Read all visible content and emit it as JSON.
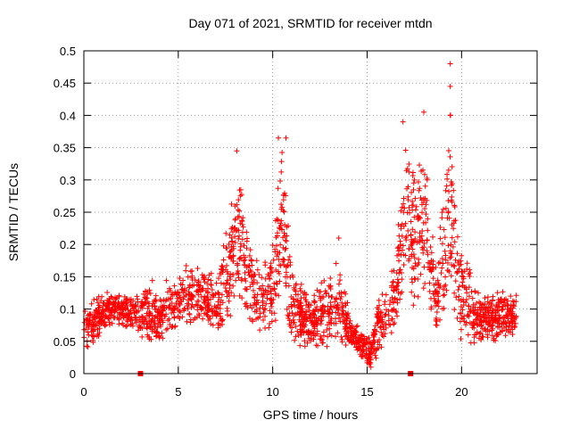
{
  "chart_data": {
    "type": "scatter",
    "title": "Day 071 of 2021, SRMTID for receiver mtdn",
    "xlabel": "GPS time / hours",
    "ylabel": "SRMTID / TECUs",
    "xlim": [
      0,
      24
    ],
    "ylim": [
      0,
      0.5
    ],
    "xticks": [
      0,
      5,
      10,
      15,
      20
    ],
    "xtick_labels": [
      "0",
      "5",
      "10",
      "15",
      "20"
    ],
    "yticks": [
      0,
      0.05,
      0.1,
      0.15,
      0.2,
      0.25,
      0.3,
      0.35,
      0.4,
      0.45,
      0.5
    ],
    "ytick_labels": [
      "0",
      "0.05",
      "0.1",
      "0.15",
      "0.2",
      "0.25",
      "0.3",
      "0.35",
      "0.4",
      "0.45",
      "0.5"
    ],
    "grid": true,
    "marker": "plus",
    "series_color": "#ff0000",
    "baseline_markers": [
      {
        "x": 3.0,
        "y": 0
      },
      {
        "x": 17.3,
        "y": 0
      }
    ],
    "trend_envelope": [
      {
        "x": 0.0,
        "base": 0.06,
        "spread": 0.03
      },
      {
        "x": 0.5,
        "base": 0.08,
        "spread": 0.03
      },
      {
        "x": 1.2,
        "base": 0.1,
        "spread": 0.025
      },
      {
        "x": 2.0,
        "base": 0.1,
        "spread": 0.025
      },
      {
        "x": 2.9,
        "base": 0.09,
        "spread": 0.03
      },
      {
        "x": 3.5,
        "base": 0.1,
        "spread": 0.05
      },
      {
        "x": 4.0,
        "base": 0.08,
        "spread": 0.03
      },
      {
        "x": 4.5,
        "base": 0.11,
        "spread": 0.04
      },
      {
        "x": 5.5,
        "base": 0.12,
        "spread": 0.04
      },
      {
        "x": 6.5,
        "base": 0.12,
        "spread": 0.04
      },
      {
        "x": 7.0,
        "base": 0.1,
        "spread": 0.05
      },
      {
        "x": 7.7,
        "base": 0.16,
        "spread": 0.08
      },
      {
        "x": 8.1,
        "base": 0.22,
        "spread": 0.1
      },
      {
        "x": 8.6,
        "base": 0.16,
        "spread": 0.07
      },
      {
        "x": 9.3,
        "base": 0.11,
        "spread": 0.05
      },
      {
        "x": 10.0,
        "base": 0.13,
        "spread": 0.07
      },
      {
        "x": 10.5,
        "base": 0.24,
        "spread": 0.12
      },
      {
        "x": 11.0,
        "base": 0.1,
        "spread": 0.05
      },
      {
        "x": 12.0,
        "base": 0.08,
        "spread": 0.04
      },
      {
        "x": 13.0,
        "base": 0.09,
        "spread": 0.05
      },
      {
        "x": 13.5,
        "base": 0.11,
        "spread": 0.06
      },
      {
        "x": 14.2,
        "base": 0.06,
        "spread": 0.02
      },
      {
        "x": 15.2,
        "base": 0.03,
        "spread": 0.02
      },
      {
        "x": 15.8,
        "base": 0.09,
        "spread": 0.05
      },
      {
        "x": 16.5,
        "base": 0.12,
        "spread": 0.05
      },
      {
        "x": 17.0,
        "base": 0.26,
        "spread": 0.1
      },
      {
        "x": 17.5,
        "base": 0.2,
        "spread": 0.1
      },
      {
        "x": 18.0,
        "base": 0.24,
        "spread": 0.12
      },
      {
        "x": 18.7,
        "base": 0.11,
        "spread": 0.05
      },
      {
        "x": 19.4,
        "base": 0.26,
        "spread": 0.15
      },
      {
        "x": 20.0,
        "base": 0.12,
        "spread": 0.08
      },
      {
        "x": 21.0,
        "base": 0.08,
        "spread": 0.03
      },
      {
        "x": 22.0,
        "base": 0.09,
        "spread": 0.04
      },
      {
        "x": 22.8,
        "base": 0.09,
        "spread": 0.03
      }
    ],
    "notable_points": [
      {
        "x": 8.1,
        "y": 0.345
      },
      {
        "x": 10.3,
        "y": 0.365
      },
      {
        "x": 10.7,
        "y": 0.365
      },
      {
        "x": 16.9,
        "y": 0.39
      },
      {
        "x": 18.0,
        "y": 0.405
      },
      {
        "x": 19.4,
        "y": 0.48
      },
      {
        "x": 19.4,
        "y": 0.445
      },
      {
        "x": 19.4,
        "y": 0.4
      },
      {
        "x": 13.5,
        "y": 0.21
      },
      {
        "x": 15.2,
        "y": 0.01
      }
    ],
    "num_points": 2200
  }
}
